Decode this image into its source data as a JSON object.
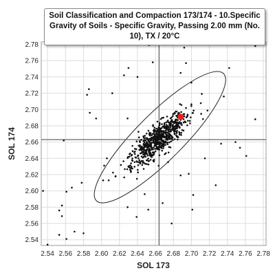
{
  "chart_data": {
    "type": "scatter",
    "title": "Soil Classification and Compaction 173/174 - 10.Specific Gravity of Soils - Specific Gravity, Passing 2.00 mm (No. 10), TX / 20°C",
    "xlabel": "SOL 173",
    "ylabel": "SOL 174",
    "xlim": [
      2.533,
      2.783
    ],
    "ylim": [
      2.533,
      2.783
    ],
    "x_ticks": [
      "2.54",
      "2.56",
      "2.58",
      "2.60",
      "2.62",
      "2.64",
      "2.66",
      "2.68",
      "2.70",
      "2.72",
      "2.74",
      "2.76",
      "2.78"
    ],
    "y_ticks": [
      "2.54",
      "2.56",
      "2.58",
      "2.60",
      "2.62",
      "2.64",
      "2.66",
      "2.68",
      "2.70",
      "2.72",
      "2.74",
      "2.76",
      "2.78"
    ],
    "grid": true,
    "reference_lines": {
      "x": 2.664,
      "y": 2.663
    },
    "ellipse": {
      "center": [
        2.665,
        2.666
      ],
      "semi_major": 0.1,
      "semi_minor": 0.026,
      "angle_deg": 45
    },
    "highlight_point": {
      "x": 2.688,
      "y": 2.691
    },
    "point_cloud": {
      "center": [
        2.664,
        2.664
      ],
      "sd_major": 0.023,
      "sd_minor": 0.0068,
      "angle_deg": 45,
      "count": 700
    },
    "outliers": [
      [
        2.54,
        2.534
      ],
      [
        2.535,
        2.6
      ],
      [
        2.553,
        2.546
      ],
      [
        2.561,
        2.541
      ],
      [
        2.556,
        2.569
      ],
      [
        2.561,
        2.599
      ],
      [
        2.553,
        2.576
      ],
      [
        2.57,
        2.55
      ],
      [
        2.578,
        2.61
      ],
      [
        2.584,
        2.718
      ],
      [
        2.586,
        2.725
      ],
      [
        2.594,
        2.689
      ],
      [
        2.603,
        2.631
      ],
      [
        2.608,
        2.613
      ],
      [
        2.629,
        2.58
      ],
      [
        2.629,
        2.689
      ],
      [
        2.63,
        2.751
      ],
      [
        2.657,
        2.758
      ],
      [
        2.653,
        2.779
      ],
      [
        2.657,
        2.784
      ],
      [
        2.688,
        2.619
      ],
      [
        2.701,
        2.577
      ],
      [
        2.702,
        2.595
      ],
      [
        2.733,
        2.658
      ],
      [
        2.749,
        2.66
      ],
      [
        2.754,
        2.653
      ],
      [
        2.761,
        2.643
      ],
      [
        2.765,
        2.781
      ],
      [
        2.771,
        2.778
      ],
      [
        2.771,
        2.688
      ],
      [
        2.752,
        2.781
      ],
      [
        2.736,
        2.716
      ],
      [
        2.742,
        2.751
      ],
      [
        2.7,
        2.733
      ],
      [
        2.692,
        2.776
      ],
      [
        2.694,
        2.757
      ],
      [
        2.648,
        2.596
      ],
      [
        2.652,
        2.577
      ],
      [
        2.556,
        2.582
      ],
      [
        2.567,
        2.604
      ],
      [
        2.558,
        2.662
      ],
      [
        2.587,
        2.696
      ],
      [
        2.606,
        2.64
      ],
      [
        2.639,
        2.568
      ],
      [
        2.678,
        2.56
      ],
      [
        2.727,
        2.607
      ],
      [
        2.64,
        2.74
      ],
      [
        2.612,
        2.72
      ],
      [
        2.58,
        2.548
      ],
      [
        2.668,
        2.585
      ],
      [
        2.715,
        2.64
      ],
      [
        2.625,
        2.742
      ],
      [
        2.688,
        2.745
      ],
      [
        2.697,
        2.621
      ]
    ],
    "colors": {
      "points": "#111111",
      "highlight": "#e8231b",
      "ellipse": "#222222",
      "ref_lines": "#555555",
      "grid": "#dddddd"
    }
  }
}
